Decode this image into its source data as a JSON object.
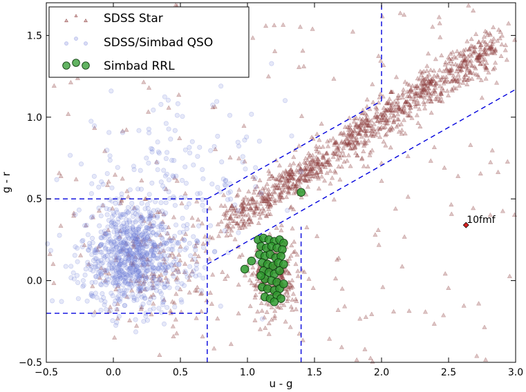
{
  "chart_data": {
    "type": "scatter",
    "xlabel": "u - g",
    "ylabel": "g - r",
    "xlim": [
      -0.5,
      3.0
    ],
    "ylim": [
      -0.5,
      1.7
    ],
    "xticks": [
      -0.5,
      0.0,
      0.5,
      1.0,
      1.5,
      2.0,
      2.5,
      3.0
    ],
    "yticks": [
      -0.5,
      0.0,
      0.5,
      1.0,
      1.5
    ],
    "xtick_labels": [
      "−0.5",
      "0.0",
      "0.5",
      "1.0",
      "1.5",
      "2.0",
      "2.5",
      "3.0"
    ],
    "ytick_labels": [
      "−0.5",
      "0.0",
      "0.5",
      "1.0",
      "1.5"
    ],
    "legend": {
      "placement": "top-left",
      "entries": [
        {
          "label": "SDSS Star",
          "marker": "triangle",
          "color": "#b07070"
        },
        {
          "label": "SDSS/Simbad QSO",
          "marker": "circle",
          "color": "#aab0e8"
        },
        {
          "label": "Simbad RRL",
          "marker": "circle",
          "color": "#2e9a2e"
        }
      ]
    },
    "selection_lines": [
      {
        "points": [
          [
            -0.5,
            0.5
          ],
          [
            0.7,
            0.5
          ]
        ]
      },
      {
        "points": [
          [
            -0.5,
            -0.2
          ],
          [
            0.7,
            -0.2
          ]
        ]
      },
      {
        "points": [
          [
            0.7,
            -0.5
          ],
          [
            0.7,
            0.5
          ]
        ]
      },
      {
        "points": [
          [
            0.7,
            0.5
          ],
          [
            2.0,
            1.1
          ]
        ]
      },
      {
        "points": [
          [
            2.0,
            1.1
          ],
          [
            2.0,
            1.7
          ]
        ]
      },
      {
        "points": [
          [
            0.7,
            0.1
          ],
          [
            3.0,
            1.17
          ]
        ]
      },
      {
        "points": [
          [
            1.4,
            -0.5
          ],
          [
            1.4,
            0.33
          ]
        ]
      }
    ],
    "series": [
      {
        "name": "SDSS Star",
        "marker": "triangle",
        "color": "#8b3a3a",
        "components": [
          {
            "kind": "locus",
            "count": 1100,
            "x_range": [
              0.85,
              2.85
            ],
            "y_start": 0.35,
            "slope": 0.55,
            "spread_x": 0.05,
            "spread_y": 0.06
          },
          {
            "kind": "blob",
            "count": 260,
            "cx": 1.2,
            "cy": 0.02,
            "sx": 0.09,
            "sy": 0.12
          },
          {
            "kind": "blob",
            "count": 180,
            "cx": 0.3,
            "cy": 0.15,
            "sx": 0.25,
            "sy": 0.2
          },
          {
            "kind": "uniform",
            "count": 200,
            "x": [
              -0.5,
              3.0
            ],
            "y": [
              -0.5,
              1.7
            ]
          }
        ]
      },
      {
        "name": "SDSS/Simbad QSO",
        "marker": "circle",
        "color": "#6f7fd8",
        "components": [
          {
            "kind": "blob",
            "count": 850,
            "cx": 0.15,
            "cy": 0.15,
            "sx": 0.2,
            "sy": 0.16
          },
          {
            "kind": "blob",
            "count": 160,
            "cx": 0.45,
            "cy": 0.62,
            "sx": 0.4,
            "sy": 0.25
          }
        ]
      },
      {
        "name": "Simbad RRL",
        "marker": "circle",
        "color": "#2e9a2e",
        "points": [
          [
            1.4,
            0.54
          ],
          [
            1.08,
            0.25
          ],
          [
            1.12,
            0.26
          ],
          [
            1.16,
            0.25
          ],
          [
            1.2,
            0.24
          ],
          [
            1.24,
            0.25
          ],
          [
            1.27,
            0.23
          ],
          [
            1.1,
            0.21
          ],
          [
            1.14,
            0.2
          ],
          [
            1.18,
            0.21
          ],
          [
            1.22,
            0.2
          ],
          [
            1.26,
            0.19
          ],
          [
            1.09,
            0.16
          ],
          [
            1.13,
            0.15
          ],
          [
            1.17,
            0.16
          ],
          [
            1.21,
            0.14
          ],
          [
            1.25,
            0.15
          ],
          [
            1.11,
            0.11
          ],
          [
            1.15,
            0.1
          ],
          [
            1.19,
            0.09
          ],
          [
            1.23,
            0.11
          ],
          [
            1.27,
            0.1
          ],
          [
            1.12,
            0.06
          ],
          [
            1.16,
            0.05
          ],
          [
            1.2,
            0.04
          ],
          [
            1.24,
            0.06
          ],
          [
            1.03,
            0.12
          ],
          [
            0.98,
            0.07
          ],
          [
            1.13,
            0.01
          ],
          [
            1.18,
            0.0
          ],
          [
            1.22,
            -0.01
          ],
          [
            1.11,
            -0.04
          ],
          [
            1.15,
            -0.05
          ],
          [
            1.2,
            -0.06
          ],
          [
            1.24,
            -0.05
          ],
          [
            1.13,
            -0.1
          ],
          [
            1.17,
            -0.11
          ],
          [
            1.22,
            -0.09
          ],
          [
            1.25,
            -0.11
          ],
          [
            1.2,
            -0.13
          ],
          [
            1.1,
            0.03
          ],
          [
            1.27,
            -0.02
          ]
        ]
      }
    ],
    "annotation": {
      "label": "10fmf",
      "x": 2.63,
      "y": 0.34,
      "marker": "diamond",
      "color": "#d62020"
    }
  }
}
